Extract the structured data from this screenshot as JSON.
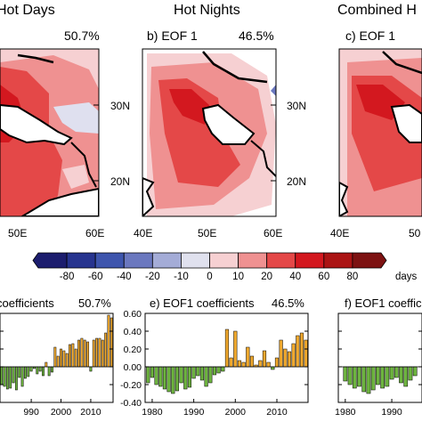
{
  "maps": {
    "column_titles": [
      "Hot Days",
      "Hot Nights",
      "Combined H"
    ],
    "panels": [
      {
        "label": "",
        "variance": "50.7%"
      },
      {
        "label": "b) EOF 1",
        "variance": "46.5%"
      },
      {
        "label": "c) EOF 1",
        "variance": ""
      }
    ],
    "lat_ticks": [
      "30N",
      "20N"
    ],
    "lon_ticks_a": [
      "50E",
      "60E"
    ],
    "lon_ticks_b": [
      "40E",
      "50E",
      "60E"
    ],
    "lon_ticks_c": [
      "40E",
      "50"
    ]
  },
  "colorbar": {
    "unit": "days",
    "labels": [
      "-80",
      "-60",
      "-40",
      "-20",
      "-10",
      "0",
      "10",
      "20",
      "40",
      "60",
      "80"
    ],
    "colors": [
      "#1c1d6e",
      "#27348f",
      "#3e55ad",
      "#6b78bf",
      "#a4acd7",
      "#e0e1ee",
      "#f6d0d2",
      "#ef9191",
      "#e44848",
      "#d3181f",
      "#ab1414",
      "#7d1212"
    ]
  },
  "chart_data": [
    {
      "type": "bar",
      "title": "coefficients",
      "variance": "50.7%",
      "x_ticks": [
        "990",
        "2000",
        "2010"
      ],
      "y_ticks": [],
      "x": [
        1980,
        1981,
        1982,
        1983,
        1984,
        1985,
        1986,
        1987,
        1988,
        1989,
        1990,
        1991,
        1992,
        1993,
        1994,
        1995,
        1996,
        1997,
        1998,
        1999,
        2000,
        2001,
        2002,
        2003,
        2004,
        2005,
        2006,
        2007,
        2008,
        2009,
        2010,
        2011,
        2012,
        2013,
        2014,
        2015,
        2016,
        2017
      ],
      "values": [
        -0.2,
        -0.22,
        -0.25,
        -0.24,
        -0.18,
        -0.26,
        -0.12,
        -0.22,
        -0.13,
        -0.11,
        -0.05,
        -0.02,
        -0.08,
        -0.05,
        -0.1,
        0.05,
        -0.1,
        -0.06,
        0.22,
        0.12,
        0.2,
        0.18,
        0.15,
        0.25,
        0.26,
        0.2,
        0.3,
        0.32,
        0.3,
        0.28,
        -0.05,
        0.3,
        0.32,
        0.32,
        0.3,
        0.38,
        0.58,
        0.55
      ],
      "ylim": [
        -0.4,
        0.6
      ],
      "colors": {
        "positive": "#f0a92e",
        "negative": "#6db33f"
      }
    },
    {
      "type": "bar",
      "title": "e) EOF1 coefficients",
      "variance": "46.5%",
      "x_ticks": [
        "1980",
        "1990",
        "2000",
        "2010"
      ],
      "y_ticks": [
        "0.60",
        "0.40",
        "0.20",
        "0.00",
        "-0.20",
        "-0.40"
      ],
      "x": [
        1979,
        1980,
        1981,
        1982,
        1983,
        1984,
        1985,
        1986,
        1987,
        1988,
        1989,
        1990,
        1991,
        1992,
        1993,
        1994,
        1995,
        1996,
        1997,
        1998,
        1999,
        2000,
        2001,
        2002,
        2003,
        2004,
        2005,
        2006,
        2007,
        2008,
        2009,
        2010,
        2011,
        2012,
        2013,
        2014,
        2015,
        2016,
        2017
      ],
      "values": [
        -0.18,
        -0.12,
        -0.2,
        -0.22,
        -0.25,
        -0.28,
        -0.3,
        -0.27,
        -0.18,
        -0.25,
        -0.23,
        -0.13,
        -0.1,
        -0.15,
        -0.22,
        -0.18,
        -0.09,
        -0.07,
        -0.05,
        0.42,
        0.1,
        0.4,
        0.07,
        0.05,
        0.22,
        0.12,
        0.02,
        0.07,
        0.18,
        0.05,
        -0.03,
        0.1,
        0.3,
        0.2,
        0.17,
        0.26,
        0.35,
        0.38,
        0.3
      ],
      "ylim": [
        -0.4,
        0.6
      ],
      "colors": {
        "positive": "#f0a92e",
        "negative": "#6db33f"
      }
    },
    {
      "type": "bar",
      "title": "f) EOF1 coeffic",
      "variance": "",
      "x_ticks": [
        "1980",
        "1990"
      ],
      "y_ticks": [],
      "x": [
        1980,
        1981,
        1982,
        1983,
        1984,
        1985,
        1986,
        1987,
        1988,
        1989,
        1990,
        1991,
        1992,
        1993,
        1994,
        1995
      ],
      "values": [
        -0.16,
        -0.2,
        -0.24,
        -0.22,
        -0.28,
        -0.3,
        -0.26,
        -0.2,
        -0.24,
        -0.22,
        -0.14,
        -0.12,
        -0.18,
        -0.22,
        -0.15,
        -0.1
      ],
      "ylim": [
        -0.4,
        0.6
      ],
      "colors": {
        "positive": "#f0a92e",
        "negative": "#6db33f"
      }
    }
  ]
}
